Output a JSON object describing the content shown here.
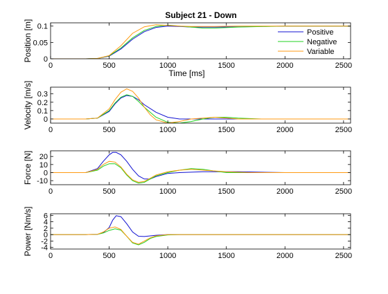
{
  "title": "Subject 21 - Down",
  "colors": {
    "Positive": "#1010d0",
    "Negative": "#20d020",
    "Variable": "#ff9a10"
  },
  "chart_data": [
    {
      "type": "line",
      "ylabel": "Position [m]",
      "xlabel": "Time [ms]",
      "xlim": [
        0,
        2560
      ],
      "ylim": [
        0,
        0.11
      ],
      "xticks": [
        0,
        500,
        1000,
        1500,
        2000,
        2500
      ],
      "yticks": [
        0,
        0.05,
        0.1
      ],
      "ytick_labels": [
        "0",
        "0.05",
        "0.1"
      ],
      "legend": {
        "position": "top-right",
        "entries": [
          "Positive",
          "Negative",
          "Variable"
        ]
      },
      "series": [
        {
          "name": "Positive",
          "x": [
            0,
            300,
            400,
            500,
            600,
            700,
            800,
            900,
            1000,
            1100,
            1200,
            1400,
            1600,
            2000,
            2560
          ],
          "values": [
            0,
            0,
            0.001,
            0.008,
            0.03,
            0.06,
            0.083,
            0.096,
            0.1,
            0.099,
            0.097,
            0.097,
            0.098,
            0.1,
            0.1
          ]
        },
        {
          "name": "Negative",
          "x": [
            0,
            300,
            400,
            500,
            600,
            700,
            800,
            900,
            1000,
            1100,
            1200,
            1300,
            1400,
            1600,
            2000,
            2560
          ],
          "values": [
            0,
            0,
            0.001,
            0.009,
            0.033,
            0.064,
            0.087,
            0.099,
            0.103,
            0.1,
            0.097,
            0.094,
            0.094,
            0.097,
            0.1,
            0.1
          ]
        },
        {
          "name": "Variable",
          "x": [
            0,
            300,
            400,
            500,
            600,
            700,
            800,
            900,
            1000,
            1100,
            1200,
            1400,
            1600,
            2000,
            2560
          ],
          "values": [
            0,
            0,
            0.001,
            0.01,
            0.04,
            0.078,
            0.098,
            0.104,
            0.102,
            0.1,
            0.099,
            0.099,
            0.1,
            0.1,
            0.1
          ]
        }
      ]
    },
    {
      "type": "line",
      "ylabel": "Velocity [m/s]",
      "xlabel": "",
      "xlim": [
        0,
        2560
      ],
      "ylim": [
        -0.05,
        0.38
      ],
      "xticks": [
        0,
        500,
        1000,
        1500,
        2000,
        2500
      ],
      "yticks": [
        0,
        0.1,
        0.2,
        0.3
      ],
      "ytick_labels": [
        "0",
        "0.1",
        "0.2",
        "0.3"
      ],
      "series": [
        {
          "name": "Positive",
          "x": [
            0,
            300,
            400,
            500,
            550,
            600,
            650,
            700,
            750,
            800,
            900,
            1000,
            1100,
            1200,
            1400,
            1600,
            2000,
            2560
          ],
          "values": [
            0,
            0,
            0.01,
            0.09,
            0.18,
            0.25,
            0.28,
            0.27,
            0.23,
            0.17,
            0.08,
            0.02,
            0.0,
            0.0,
            0.0,
            0.0,
            0.0,
            0.0
          ]
        },
        {
          "name": "Negative",
          "x": [
            0,
            300,
            400,
            500,
            550,
            600,
            650,
            700,
            750,
            800,
            900,
            1000,
            1100,
            1200,
            1300,
            1400,
            1500,
            1600,
            1800,
            2000,
            2560
          ],
          "values": [
            0,
            0,
            0.01,
            0.1,
            0.19,
            0.26,
            0.29,
            0.27,
            0.21,
            0.14,
            0.02,
            -0.04,
            -0.05,
            -0.03,
            0.0,
            0.02,
            0.02,
            0.01,
            0.0,
            0.0,
            0.0
          ]
        },
        {
          "name": "Variable",
          "x": [
            0,
            300,
            400,
            500,
            550,
            600,
            650,
            700,
            750,
            800,
            850,
            900,
            1000,
            1100,
            1200,
            1300,
            1400,
            1600,
            2000,
            2560
          ],
          "values": [
            0,
            0,
            0.01,
            0.12,
            0.23,
            0.32,
            0.36,
            0.33,
            0.25,
            0.14,
            0.05,
            -0.01,
            -0.05,
            -0.03,
            0.0,
            0.01,
            0.02,
            0.0,
            0.0,
            0.0
          ]
        }
      ]
    },
    {
      "type": "line",
      "ylabel": "Force [N]",
      "xlabel": "",
      "xlim": [
        0,
        2560
      ],
      "ylim": [
        -15,
        27
      ],
      "xticks": [
        0,
        500,
        1000,
        1500,
        2000,
        2500
      ],
      "yticks": [
        -10,
        0,
        10,
        20
      ],
      "ytick_labels": [
        "-10",
        "0",
        "10",
        "20"
      ],
      "series": [
        {
          "name": "Positive",
          "x": [
            0,
            300,
            400,
            450,
            500,
            530,
            560,
            600,
            650,
            700,
            750,
            800,
            850,
            900,
            1000,
            1100,
            1300,
            1600,
            2000,
            2560
          ],
          "values": [
            0,
            0,
            5,
            14,
            22,
            25,
            25,
            22,
            14,
            4,
            -4,
            -8,
            -8,
            -5,
            -1,
            0,
            1,
            1,
            0,
            0
          ]
        },
        {
          "name": "Negative",
          "x": [
            0,
            300,
            400,
            450,
            500,
            550,
            600,
            650,
            700,
            750,
            800,
            850,
            900,
            1000,
            1100,
            1200,
            1300,
            1400,
            1500,
            1700,
            2000,
            2560
          ],
          "values": [
            0,
            0,
            3,
            8,
            11,
            11,
            6,
            -3,
            -10,
            -13,
            -12,
            -8,
            -4,
            0,
            3,
            5,
            4,
            2,
            0,
            0,
            0,
            0
          ]
        },
        {
          "name": "Variable",
          "x": [
            0,
            300,
            400,
            450,
            500,
            550,
            600,
            650,
            700,
            750,
            800,
            850,
            900,
            1000,
            1100,
            1200,
            1300,
            1500,
            1700,
            2000,
            2560
          ],
          "values": [
            0,
            0,
            4,
            10,
            14,
            13,
            7,
            -2,
            -9,
            -12,
            -11,
            -7,
            -3,
            1,
            3,
            4,
            3,
            1,
            0,
            0,
            0
          ]
        }
      ]
    },
    {
      "type": "line",
      "ylabel": "Power [Nm/s]",
      "xlabel": "",
      "xlim": [
        0,
        2560
      ],
      "ylim": [
        -4.5,
        6.5
      ],
      "xticks": [
        0,
        500,
        1000,
        1500,
        2000,
        2500
      ],
      "yticks": [
        -4,
        -2,
        0,
        2,
        4,
        6
      ],
      "ytick_labels": [
        "-4",
        "-2",
        "0",
        "2",
        "4",
        "6"
      ],
      "series": [
        {
          "name": "Positive",
          "x": [
            0,
            300,
            400,
            450,
            500,
            530,
            560,
            600,
            650,
            700,
            750,
            800,
            850,
            900,
            1000,
            1100,
            2560
          ],
          "values": [
            0,
            0,
            0.1,
            0.6,
            2.2,
            4.5,
            5.9,
            5.6,
            3.4,
            0.8,
            -0.5,
            -0.6,
            -0.4,
            -0.2,
            0,
            0,
            0
          ]
        },
        {
          "name": "Negative",
          "x": [
            0,
            300,
            400,
            450,
            500,
            550,
            600,
            650,
            700,
            750,
            800,
            850,
            900,
            1000,
            1100,
            1200,
            2560
          ],
          "values": [
            0,
            0,
            0.1,
            0.5,
            1.3,
            1.8,
            1.4,
            -0.5,
            -2.6,
            -3.2,
            -2.4,
            -1.2,
            -0.6,
            -0.1,
            0,
            0,
            0
          ]
        },
        {
          "name": "Variable",
          "x": [
            0,
            300,
            400,
            450,
            500,
            550,
            600,
            650,
            700,
            750,
            800,
            850,
            900,
            1000,
            1100,
            1200,
            2560
          ],
          "values": [
            0,
            0,
            0.1,
            0.8,
            2.0,
            2.4,
            1.6,
            -0.5,
            -2.4,
            -3.0,
            -2.0,
            -1.0,
            -0.4,
            0,
            0,
            0,
            0
          ]
        }
      ]
    }
  ]
}
